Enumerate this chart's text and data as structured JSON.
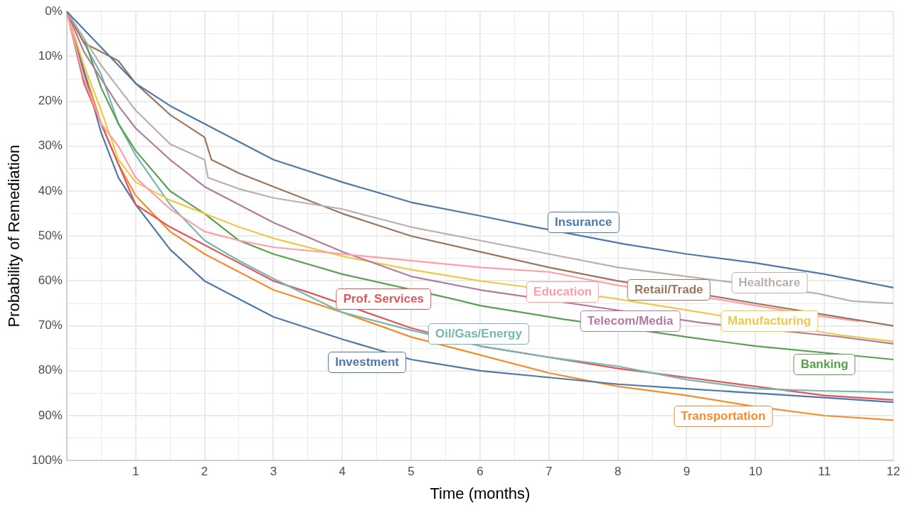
{
  "chart_data": {
    "type": "line",
    "xlabel": "Time (months)",
    "ylabel": "Probability of Remediation",
    "x": [
      0,
      0.25,
      0.5,
      0.75,
      1,
      1.5,
      2,
      2.5,
      3,
      4,
      5,
      6,
      7,
      8,
      9,
      10,
      11,
      12
    ],
    "xlim": [
      0,
      12
    ],
    "xticks": [
      {
        "value": 0,
        "label": null
      },
      {
        "value": 0.5,
        "label": null
      },
      1,
      {
        "value": 1.5,
        "label": null
      },
      2,
      {
        "value": 2.5,
        "label": null
      },
      3,
      {
        "value": 3.5,
        "label": null
      },
      4,
      {
        "value": 4.5,
        "label": null
      },
      5,
      {
        "value": 5.5,
        "label": null
      },
      6,
      {
        "value": 6.5,
        "label": null
      },
      7,
      {
        "value": 7.5,
        "label": null
      },
      8,
      {
        "value": 8.5,
        "label": null
      },
      9,
      {
        "value": 9.5,
        "label": null
      },
      10,
      {
        "value": 10.5,
        "label": null
      },
      11,
      {
        "value": 11.5,
        "label": null
      },
      12
    ],
    "ylim": [
      100,
      0
    ],
    "yticks": [
      {
        "value": 0,
        "label": "0%"
      },
      {
        "value": 5,
        "label": null
      },
      {
        "value": 10,
        "label": "10%"
      },
      {
        "value": 15,
        "label": null
      },
      {
        "value": 20,
        "label": "20%"
      },
      {
        "value": 25,
        "label": null
      },
      {
        "value": 30,
        "label": "30%"
      },
      {
        "value": 35,
        "label": null
      },
      {
        "value": 40,
        "label": "40%"
      },
      {
        "value": 45,
        "label": null
      },
      {
        "value": 50,
        "label": "50%"
      },
      {
        "value": 55,
        "label": null
      },
      {
        "value": 60,
        "label": "60%"
      },
      {
        "value": 65,
        "label": null
      },
      {
        "value": 70,
        "label": "70%"
      },
      {
        "value": 75,
        "label": null
      },
      {
        "value": 80,
        "label": "80%"
      },
      {
        "value": 85,
        "label": null
      },
      {
        "value": 90,
        "label": "90%"
      },
      {
        "value": 95,
        "label": null
      },
      {
        "value": 100,
        "label": "100%"
      }
    ],
    "grid": true,
    "legend": false,
    "marker": "none",
    "line_style": "solid",
    "series": [
      {
        "name": "Insurance",
        "color": "#4e79a7",
        "x": [
          0,
          0.25,
          0.5,
          0.75,
          1,
          1.5,
          2,
          2.5,
          3,
          4,
          5,
          6,
          6.8,
          8.1,
          9,
          10,
          11,
          12
        ],
        "values": [
          0,
          4,
          8,
          12,
          16,
          21,
          25,
          29,
          33,
          38,
          42.5,
          45.5,
          48,
          51.8,
          54,
          56,
          58.5,
          61.5
        ]
      },
      {
        "name": "Healthcare",
        "color": "#bab0ac",
        "x": [
          0,
          0.25,
          0.5,
          0.75,
          1,
          1.5,
          2,
          2.05,
          2.5,
          3,
          4,
          5,
          6,
          7,
          8,
          9,
          9.5,
          10.9,
          11.4,
          12
        ],
        "values": [
          0,
          6,
          12,
          17,
          22,
          29.5,
          33,
          37,
          39.5,
          41.5,
          44,
          48,
          51,
          54,
          57,
          59,
          60,
          62.8,
          64.5,
          65
        ]
      },
      {
        "name": "Retail/Trade",
        "color": "#9c755f",
        "x": [
          0,
          0.25,
          0.5,
          0.75,
          1,
          1.5,
          2,
          2.1,
          2.5,
          3,
          4,
          5,
          6,
          7,
          8,
          9.5,
          10,
          11,
          12
        ],
        "values": [
          0,
          7,
          9,
          11,
          16,
          23,
          28,
          33,
          36,
          39,
          45,
          50,
          53.5,
          57,
          60,
          63.7,
          65,
          67.5,
          70
        ]
      },
      {
        "name": "Education",
        "color": "#ff9da7",
        "x": [
          0,
          0.25,
          0.5,
          0.75,
          1,
          1.5,
          2,
          2.5,
          3,
          4,
          5,
          6,
          7,
          8,
          9.5,
          10,
          11,
          11.5
        ],
        "values": [
          0,
          15,
          25,
          30,
          37,
          44,
          49,
          51,
          52.5,
          54,
          55.5,
          57,
          58,
          61,
          64.2,
          65.5,
          68,
          69
        ]
      },
      {
        "name": "Telecom/Media",
        "color": "#b07aa1",
        "x": [
          0,
          0.25,
          0.5,
          0.75,
          1,
          1.5,
          2,
          2.5,
          3,
          4,
          5,
          6,
          7.9,
          9.2,
          11.2,
          12
        ],
        "values": [
          0,
          9,
          15,
          21,
          26,
          33,
          39,
          43,
          47,
          53.5,
          59,
          62,
          66.3,
          69.3,
          72.4,
          74
        ]
      },
      {
        "name": "Manufacturing",
        "color": "#edc948",
        "x": [
          0,
          0.25,
          0.5,
          0.75,
          1,
          1.5,
          2,
          2.5,
          3,
          4,
          5,
          6,
          6.5,
          7.9,
          9.2,
          11.2,
          12
        ],
        "values": [
          0,
          12,
          22,
          33,
          38,
          42,
          45,
          48,
          50.5,
          54.5,
          57.5,
          60,
          61,
          63.8,
          67,
          72,
          73.5
        ]
      },
      {
        "name": "Banking",
        "color": "#59a14f",
        "x": [
          0,
          0.25,
          0.5,
          0.75,
          1,
          1.5,
          2,
          2.5,
          3,
          4,
          5.6,
          6,
          7.2,
          9.1,
          10,
          11,
          12
        ],
        "values": [
          0,
          6,
          17,
          25,
          31,
          40,
          45,
          51,
          54,
          58.5,
          64,
          65.5,
          68.5,
          72.7,
          74.5,
          76,
          77.5
        ]
      },
      {
        "name": "Oil/Gas/Energy",
        "color": "#76b7b2",
        "values": [
          0,
          7,
          14,
          25,
          32,
          43,
          51,
          55.5,
          59.5,
          67,
          71,
          74.5,
          77,
          79,
          82,
          84,
          84.5,
          84.8
        ]
      },
      {
        "name": "Prof. Services",
        "color": "#e15759",
        "x": [
          0,
          0.25,
          0.5,
          0.75,
          1,
          1.5,
          2,
          2.5,
          3,
          3.6,
          5,
          6,
          7,
          8,
          9,
          10,
          11,
          12
        ],
        "values": [
          0,
          16,
          25,
          34,
          43,
          48,
          52,
          56,
          60,
          63,
          70.5,
          74.5,
          77,
          79.5,
          81.5,
          83.5,
          85.5,
          86.5
        ]
      },
      {
        "name": "Investment",
        "color": "#4e79a7",
        "values": [
          0,
          13.5,
          27,
          37,
          43,
          53,
          60,
          64,
          68,
          73,
          77.5,
          80,
          81.5,
          83,
          84,
          85,
          86,
          87
        ]
      },
      {
        "name": "Transportation",
        "color": "#f28e2b",
        "values": [
          0,
          13,
          25,
          34,
          41,
          49,
          54,
          58,
          62,
          67,
          72.5,
          76.5,
          80.5,
          83.5,
          85.5,
          88,
          90,
          91
        ]
      }
    ]
  }
}
